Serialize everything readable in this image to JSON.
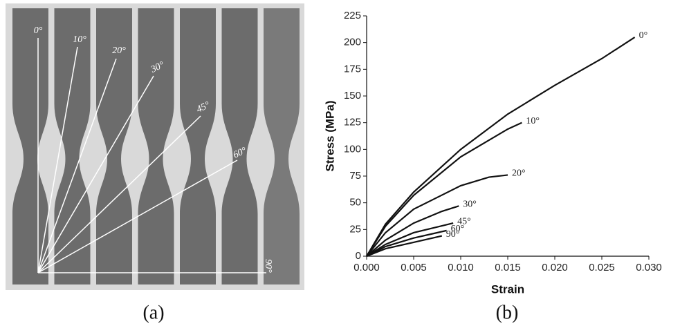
{
  "figure": {
    "photo_labels": [
      "0°",
      "10°",
      "20°",
      "30°",
      "45°",
      "60°",
      "90°"
    ],
    "captions": [
      "(a)",
      "(b)"
    ]
  },
  "chart_data": {
    "type": "line",
    "x_label": "Strain",
    "y_label": "Stress (MPa)",
    "xlim": [
      0,
      0.03
    ],
    "ylim": [
      0,
      225
    ],
    "xticks": [
      {
        "value": 0,
        "label": "0.000"
      },
      {
        "value": 0.005,
        "label": "0.005"
      },
      {
        "value": 0.01,
        "label": "0.010"
      },
      {
        "value": 0.015,
        "label": "0.015"
      },
      {
        "value": 0.02,
        "label": "0.020"
      },
      {
        "value": 0.025,
        "label": "0.025"
      },
      {
        "value": 0.03,
        "label": "0.030"
      }
    ],
    "yticks": [
      0,
      25,
      50,
      75,
      100,
      125,
      150,
      175,
      200,
      225
    ],
    "series": [
      {
        "name": "0°",
        "color": "#111111",
        "x": [
          0,
          0.002,
          0.005,
          0.01,
          0.015,
          0.02,
          0.025,
          0.0285
        ],
        "values": [
          0,
          30,
          60,
          100,
          133,
          160,
          185,
          205
        ]
      },
      {
        "name": "10°",
        "color": "#111111",
        "x": [
          0,
          0.002,
          0.005,
          0.01,
          0.015,
          0.0165
        ],
        "values": [
          0,
          28,
          57,
          93,
          119,
          125
        ]
      },
      {
        "name": "20°",
        "color": "#111111",
        "x": [
          0,
          0.002,
          0.005,
          0.01,
          0.013,
          0.015
        ],
        "values": [
          0,
          22,
          44,
          66,
          74,
          76
        ]
      },
      {
        "name": "30°",
        "color": "#111111",
        "x": [
          0,
          0.002,
          0.005,
          0.008,
          0.0098
        ],
        "values": [
          0,
          15,
          31,
          42,
          47
        ]
      },
      {
        "name": "45°",
        "color": "#111111",
        "x": [
          0,
          0.002,
          0.005,
          0.0092
        ],
        "values": [
          0,
          11,
          22,
          31
        ]
      },
      {
        "name": "60°",
        "color": "#111111",
        "x": [
          0,
          0.002,
          0.005,
          0.0085
        ],
        "values": [
          0,
          9,
          17,
          24
        ]
      },
      {
        "name": "90°",
        "color": "#111111",
        "x": [
          0,
          0.002,
          0.005,
          0.008
        ],
        "values": [
          0,
          7,
          13,
          19
        ]
      }
    ]
  }
}
